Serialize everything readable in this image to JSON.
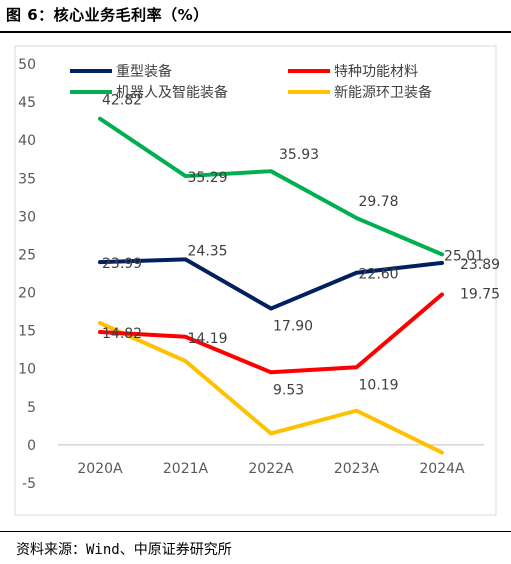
{
  "figure_title": "图 6：核心业务毛利率（%）",
  "source": "资料来源：Wind、中原证券研究所",
  "chart_data": {
    "type": "line",
    "title": "",
    "xlabel": "",
    "ylabel": "",
    "categories": [
      "2020A",
      "2021A",
      "2022A",
      "2023A",
      "2024A"
    ],
    "ylim": [
      -5,
      50
    ],
    "yticks": [
      "50",
      "45",
      "40",
      "35",
      "30",
      "25",
      "20",
      "15",
      "10",
      "5",
      "0",
      "-5"
    ],
    "grid": false,
    "legend_position": "top",
    "series": [
      {
        "name": "重型装备",
        "color": "#002060",
        "values": [
          23.99,
          24.35,
          17.9,
          22.6,
          23.89
        ],
        "labels": [
          "23.99",
          "24.35",
          "17.90",
          "22.60",
          "23.89"
        ]
      },
      {
        "name": "特种功能材料",
        "color": "#FF0000",
        "values": [
          14.82,
          14.19,
          9.53,
          10.19,
          19.75
        ],
        "labels": [
          "14.82",
          "14.19",
          "9.53",
          "10.19",
          "19.75"
        ]
      },
      {
        "name": "机器人及智能装备",
        "color": "#00B050",
        "values": [
          42.82,
          35.29,
          35.93,
          29.78,
          25.01
        ],
        "labels": [
          "42.82",
          "35.29",
          "35.93",
          "29.78",
          "25.01"
        ]
      },
      {
        "name": "新能源环卫装备",
        "color": "#FFC000",
        "values": [
          16.0,
          11.0,
          1.5,
          4.5,
          -1.0
        ],
        "labels": []
      }
    ]
  }
}
